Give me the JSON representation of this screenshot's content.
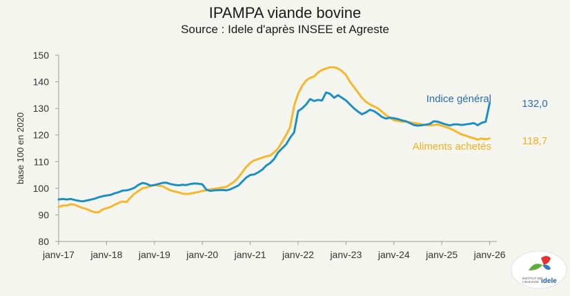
{
  "title": "IPAMPA viande bovine",
  "subtitle": "Source : Idele d'après INSEE et Agreste",
  "logo_text": "INSTITUT DE L'ÉLEVAGE idele",
  "colors": {
    "indice": "#1b8fc4",
    "aliments": "#f6b72b",
    "label_indice": "#2b6cb0",
    "label_aliments": "#f2b01e"
  },
  "chart_data": {
    "type": "line",
    "title": "IPAMPA viande bovine",
    "subtitle": "Source : Idele d'après INSEE et Agreste",
    "xlabel": "",
    "ylabel": "base 100 en 2020",
    "ylim": [
      80,
      150
    ],
    "yticks": [
      80,
      90,
      100,
      110,
      120,
      130,
      140,
      150
    ],
    "xticks": [
      "janv-17",
      "janv-18",
      "janv-19",
      "janv-20",
      "janv-21",
      "janv-22",
      "janv-23",
      "janv-24",
      "janv-25",
      "janv-26"
    ],
    "grid": false,
    "x_start": "janv-17",
    "x_frequency": "monthly",
    "series": [
      {
        "name": "Indice général",
        "end_label": "132,0",
        "values": [
          95.8,
          96.0,
          95.8,
          96.0,
          95.6,
          95.3,
          95.1,
          95.4,
          95.7,
          96.1,
          96.6,
          97.0,
          97.3,
          97.5,
          98.1,
          98.5,
          99.1,
          99.2,
          99.6,
          100.2,
          101.3,
          102.0,
          101.7,
          101.0,
          101.2,
          101.6,
          102.0,
          102.1,
          101.6,
          101.3,
          101.1,
          101.3,
          101.2,
          101.6,
          101.8,
          101.7,
          101.5,
          99.5,
          99.0,
          99.2,
          99.3,
          99.4,
          99.2,
          99.6,
          100.3,
          101.0,
          102.5,
          104.0,
          105.0,
          105.2,
          106.0,
          107.0,
          108.5,
          109.5,
          111.0,
          113.5,
          115.0,
          116.5,
          119.0,
          121.0,
          129.0,
          130.0,
          131.5,
          133.5,
          132.8,
          133.2,
          133.0,
          136.0,
          135.5,
          134.0,
          135.0,
          134.0,
          133.0,
          131.5,
          130.0,
          128.8,
          127.8,
          128.5,
          129.5,
          129.0,
          128.0,
          126.8,
          126.2,
          126.5,
          126.3,
          126.0,
          125.5,
          125.2,
          124.5,
          123.8,
          123.5,
          123.7,
          123.9,
          124.2,
          125.2,
          125.0,
          124.5,
          124.0,
          123.6,
          124.0,
          124.0,
          123.8,
          124.0,
          124.2,
          124.5,
          123.7,
          124.6,
          125.0,
          132.0
        ]
      },
      {
        "name": "Aliments achetés",
        "end_label": "118,7",
        "values": [
          93.0,
          93.5,
          93.5,
          94.0,
          93.8,
          93.2,
          92.6,
          92.2,
          91.5,
          91.0,
          91.0,
          92.0,
          92.5,
          93.0,
          93.8,
          94.5,
          95.0,
          94.8,
          96.5,
          98.0,
          99.0,
          100.0,
          100.3,
          100.8,
          101.2,
          101.0,
          100.8,
          100.0,
          99.2,
          98.8,
          98.5,
          98.0,
          97.8,
          98.0,
          98.3,
          98.6,
          99.0,
          99.2,
          99.6,
          99.8,
          100.0,
          100.3,
          100.5,
          101.5,
          102.5,
          104.0,
          106.0,
          108.0,
          109.5,
          110.5,
          111.0,
          111.5,
          112.0,
          112.3,
          113.5,
          115.0,
          117.5,
          120.0,
          123.0,
          131.0,
          135.5,
          138.5,
          140.5,
          141.5,
          142.0,
          143.5,
          144.5,
          145.0,
          145.5,
          145.5,
          145.0,
          144.0,
          142.5,
          140.0,
          138.0,
          136.0,
          134.0,
          132.5,
          131.5,
          130.8,
          130.0,
          128.8,
          127.5,
          126.5,
          125.5,
          125.3,
          125.0,
          125.0,
          124.8,
          124.5,
          124.3,
          124.0,
          123.8,
          123.6,
          123.8,
          124.0,
          123.5,
          123.0,
          122.5,
          121.8,
          121.0,
          120.2,
          119.8,
          119.2,
          118.8,
          118.3,
          118.7,
          118.4,
          118.7
        ]
      }
    ]
  }
}
